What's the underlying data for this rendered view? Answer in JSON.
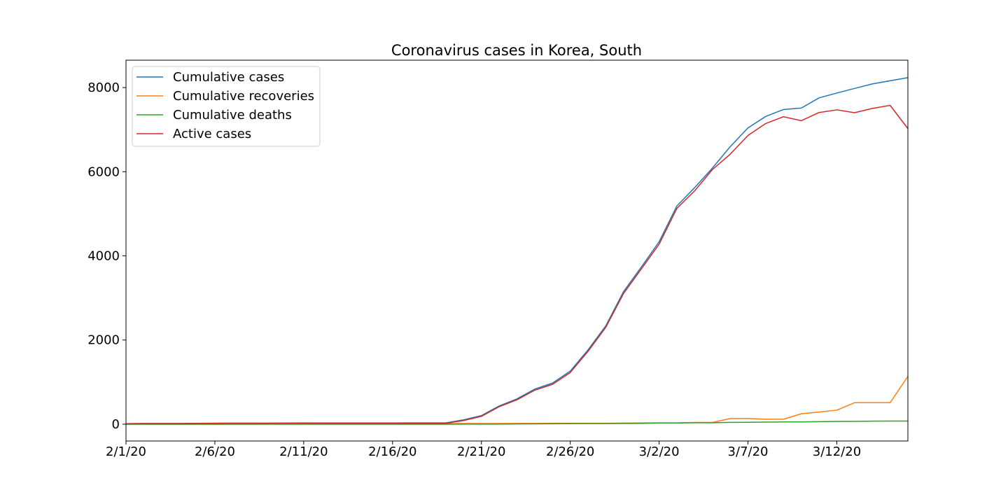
{
  "chart_data": {
    "type": "line",
    "title": "Coronavirus cases in Korea, South",
    "xlabel": "",
    "ylabel": "",
    "x": [
      "2/1/20",
      "2/2/20",
      "2/3/20",
      "2/4/20",
      "2/5/20",
      "2/6/20",
      "2/7/20",
      "2/8/20",
      "2/9/20",
      "2/10/20",
      "2/11/20",
      "2/12/20",
      "2/13/20",
      "2/14/20",
      "2/15/20",
      "2/16/20",
      "2/17/20",
      "2/18/20",
      "2/19/20",
      "2/20/20",
      "2/21/20",
      "2/22/20",
      "2/23/20",
      "2/24/20",
      "2/25/20",
      "2/26/20",
      "2/27/20",
      "2/28/20",
      "2/29/20",
      "3/1/20",
      "3/2/20",
      "3/3/20",
      "3/4/20",
      "3/5/20",
      "3/6/20",
      "3/7/20",
      "3/8/20",
      "3/9/20",
      "3/10/20",
      "3/11/20",
      "3/12/20",
      "3/13/20",
      "3/14/20",
      "3/15/20",
      "3/16/20"
    ],
    "x_ticks": [
      "2/1/20",
      "2/6/20",
      "2/11/20",
      "2/16/20",
      "2/21/20",
      "2/26/20",
      "3/2/20",
      "3/7/20",
      "3/12/20"
    ],
    "y_ticks": [
      0,
      2000,
      4000,
      6000,
      8000
    ],
    "ylim": [
      -400,
      8650
    ],
    "grid": false,
    "legend_position": "top-left",
    "series": [
      {
        "name": "Cumulative cases",
        "color": "#1f77b4",
        "values": [
          12,
          15,
          15,
          16,
          19,
          23,
          24,
          24,
          25,
          27,
          28,
          28,
          28,
          28,
          28,
          29,
          30,
          31,
          31,
          104,
          204,
          433,
          602,
          833,
          977,
          1261,
          1766,
          2337,
          3150,
          3736,
          4335,
          5186,
          5621,
          6088,
          6593,
          7041,
          7314,
          7478,
          7513,
          7755,
          7869,
          7979,
          8086,
          8162,
          8236
        ]
      },
      {
        "name": "Cumulative recoveries",
        "color": "#ff7f0e",
        "values": [
          0,
          0,
          0,
          0,
          0,
          0,
          1,
          1,
          3,
          3,
          3,
          7,
          7,
          7,
          9,
          9,
          10,
          12,
          12,
          16,
          16,
          16,
          18,
          18,
          22,
          22,
          22,
          22,
          27,
          30,
          30,
          30,
          41,
          41,
          135,
          135,
          118,
          118,
          247,
          288,
          333,
          510,
          510,
          510,
          1137
        ]
      },
      {
        "name": "Cumulative deaths",
        "color": "#2ca02c",
        "values": [
          0,
          0,
          0,
          0,
          0,
          0,
          0,
          0,
          0,
          0,
          0,
          0,
          0,
          0,
          0,
          0,
          0,
          0,
          0,
          1,
          2,
          2,
          6,
          8,
          10,
          12,
          13,
          13,
          16,
          17,
          28,
          28,
          35,
          35,
          42,
          44,
          50,
          53,
          54,
          60,
          66,
          66,
          72,
          75,
          75
        ]
      },
      {
        "name": "Active cases",
        "color": "#d62728",
        "values": [
          12,
          15,
          15,
          16,
          19,
          23,
          23,
          23,
          22,
          24,
          25,
          21,
          21,
          21,
          19,
          20,
          20,
          19,
          19,
          87,
          186,
          415,
          578,
          807,
          945,
          1227,
          1731,
          2302,
          3107,
          3689,
          4277,
          5128,
          5545,
          6052,
          6416,
          6862,
          7146,
          7307,
          7212,
          7407,
          7470,
          7403,
          7504,
          7577,
          7024
        ]
      }
    ]
  }
}
